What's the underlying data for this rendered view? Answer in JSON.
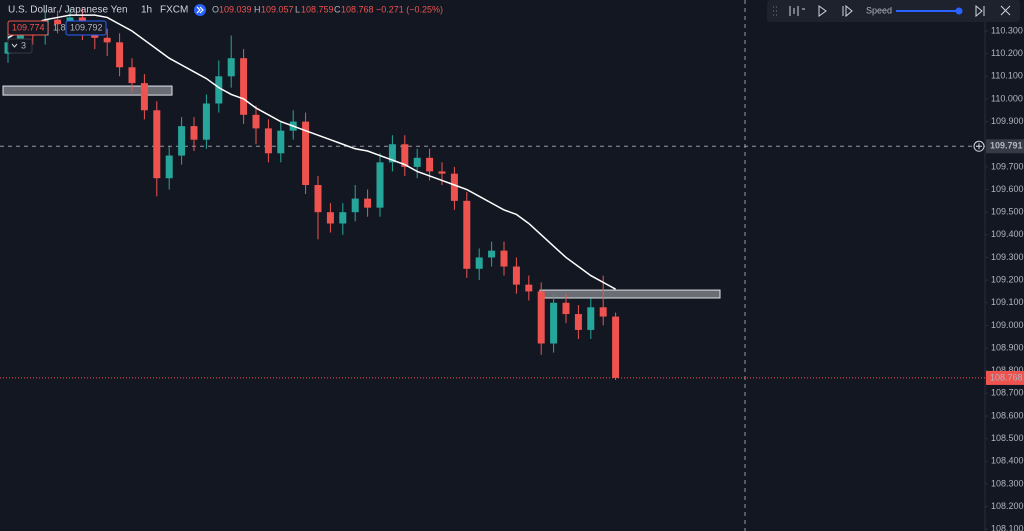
{
  "header": {
    "symbol": "U.S. Dollar / Japanese Yen",
    "interval": "1h",
    "source": "FXCM",
    "ohlc": [
      {
        "label": "O",
        "value": "109.039"
      },
      {
        "label": "H",
        "value": "109.057"
      },
      {
        "label": "L",
        "value": "108.759"
      },
      {
        "label": "C",
        "value": "108.768"
      }
    ],
    "change": "−0.271 (−0.25%)",
    "sell_price": "109.774",
    "spread": "1.8",
    "buy_price": "109.792",
    "indicator_count": "3"
  },
  "toolbar": {
    "speed_label": "Speed"
  },
  "chart_data": {
    "type": "candlestick",
    "open": [
      110.2,
      110.25,
      110.3,
      110.28,
      110.35,
      110.33,
      110.36,
      110.3,
      110.27,
      110.25,
      110.14,
      110.07,
      109.95,
      109.65,
      109.75,
      109.88,
      109.82,
      109.98,
      110.1,
      110.18,
      109.93,
      109.87,
      109.76,
      109.86,
      109.9,
      109.62,
      109.5,
      109.45,
      109.5,
      109.56,
      109.52,
      109.72,
      109.8,
      109.7,
      109.74,
      109.68,
      109.67,
      109.55,
      109.25,
      109.3,
      109.33,
      109.26,
      109.18,
      109.15,
      108.92,
      109.1,
      109.05,
      108.98,
      109.08,
      109.039
    ],
    "high": [
      110.29,
      110.34,
      110.34,
      110.39,
      110.39,
      110.4,
      110.4,
      110.34,
      110.31,
      110.29,
      110.18,
      110.11,
      109.99,
      109.79,
      109.92,
      109.92,
      110.02,
      110.17,
      110.28,
      110.22,
      109.97,
      109.91,
      109.9,
      109.95,
      109.94,
      109.66,
      109.54,
      109.54,
      109.62,
      109.6,
      109.76,
      109.84,
      109.84,
      109.78,
      109.78,
      109.72,
      109.7,
      109.59,
      109.34,
      109.37,
      109.37,
      109.3,
      109.22,
      109.19,
      109.14,
      109.14,
      109.09,
      109.12,
      109.22,
      109.057
    ],
    "low": [
      110.16,
      110.21,
      110.24,
      110.24,
      110.29,
      110.29,
      110.26,
      110.22,
      110.19,
      110.1,
      110.03,
      109.91,
      109.57,
      109.6,
      109.71,
      109.77,
      109.78,
      109.94,
      110.05,
      109.89,
      109.8,
      109.72,
      109.72,
      109.82,
      109.58,
      109.38,
      109.41,
      109.4,
      109.46,
      109.48,
      109.48,
      109.68,
      109.66,
      109.65,
      109.64,
      109.62,
      109.51,
      109.21,
      109.2,
      109.26,
      109.22,
      109.14,
      109.11,
      108.87,
      108.88,
      109.01,
      108.94,
      108.94,
      109.0,
      108.759
    ],
    "close": [
      110.25,
      110.3,
      110.28,
      110.35,
      110.33,
      110.36,
      110.3,
      110.27,
      110.25,
      110.14,
      110.07,
      109.95,
      109.65,
      109.75,
      109.88,
      109.82,
      109.98,
      110.1,
      110.18,
      109.93,
      109.87,
      109.76,
      109.86,
      109.9,
      109.62,
      109.5,
      109.45,
      109.5,
      109.56,
      109.52,
      109.72,
      109.8,
      109.7,
      109.74,
      109.68,
      109.67,
      109.55,
      109.25,
      109.3,
      109.33,
      109.26,
      109.18,
      109.15,
      108.92,
      109.1,
      109.05,
      108.98,
      109.08,
      109.039,
      108.768
    ],
    "up_color": "#26a69a",
    "down_color": "#ef5350",
    "moving_average": {
      "color": "#ffffff",
      "values": [
        110.27,
        110.3,
        110.33,
        110.35,
        110.36,
        110.37,
        110.37,
        110.37,
        110.36,
        110.33,
        110.3,
        110.26,
        110.22,
        110.18,
        110.15,
        110.12,
        110.09,
        110.05,
        110.02,
        110.0,
        109.96,
        109.93,
        109.9,
        109.88,
        109.86,
        109.84,
        109.82,
        109.8,
        109.78,
        109.77,
        109.75,
        109.73,
        109.71,
        109.68,
        109.66,
        109.64,
        109.62,
        109.6,
        109.57,
        109.54,
        109.51,
        109.49,
        109.45,
        109.4,
        109.35,
        109.3,
        109.26,
        109.22,
        109.19,
        109.16
      ]
    },
    "zones": [
      {
        "top": 110.057,
        "bottom": 110.017
      },
      {
        "top": 109.156,
        "bottom": 109.121
      }
    ],
    "crosshair": {
      "value": 109.791,
      "label": "109.791"
    },
    "last_price": {
      "value": 108.768,
      "label": "108.768"
    },
    "ylim": [
      108.092,
      110.437
    ],
    "yticks": [
      {
        "value": 108.1,
        "label": "108.100"
      },
      {
        "value": 108.2,
        "label": "108.200"
      },
      {
        "value": 108.3,
        "label": "108.300"
      },
      {
        "value": 108.4,
        "label": "108.400"
      },
      {
        "value": 108.5,
        "label": "108.500"
      },
      {
        "value": 108.6,
        "label": "108.600"
      },
      {
        "value": 108.7,
        "label": "108.700"
      },
      {
        "value": 108.8,
        "label": "108.800"
      },
      {
        "value": 108.9,
        "label": "108.900"
      },
      {
        "value": 109.0,
        "label": "109.000"
      },
      {
        "value": 109.1,
        "label": "109.100"
      },
      {
        "value": 109.2,
        "label": "109.200"
      },
      {
        "value": 109.3,
        "label": "109.300"
      },
      {
        "value": 109.4,
        "label": "109.400"
      },
      {
        "value": 109.5,
        "label": "109.500"
      },
      {
        "value": 109.6,
        "label": "109.600"
      },
      {
        "value": 109.7,
        "label": "109.700"
      },
      {
        "value": 109.8,
        "label": "109.800"
      },
      {
        "value": 109.9,
        "label": "109.900"
      },
      {
        "value": 110.0,
        "label": "110.000"
      },
      {
        "value": 110.1,
        "label": "110.100"
      },
      {
        "value": 110.2,
        "label": "110.200"
      },
      {
        "value": 110.3,
        "label": "110.300"
      }
    ]
  }
}
